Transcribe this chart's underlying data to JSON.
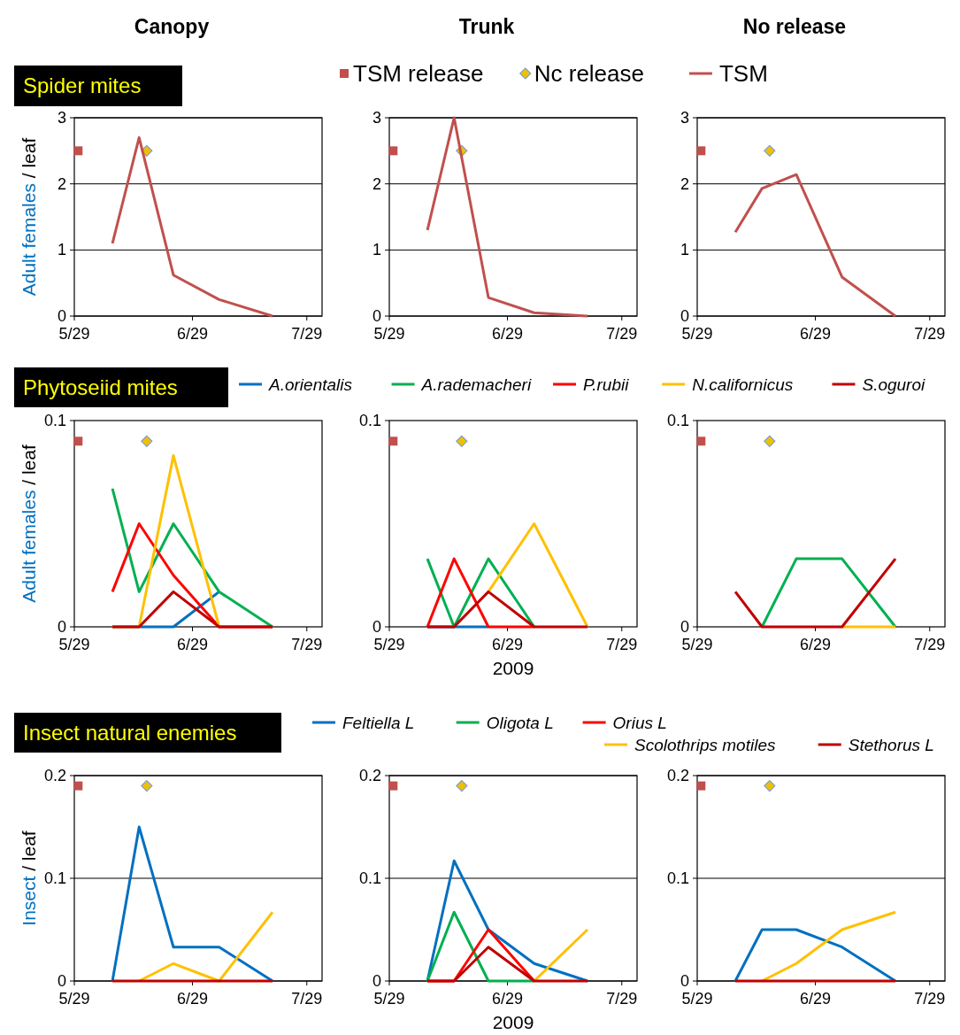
{
  "chart_data": [
    {
      "type": "line",
      "title": "Canopy",
      "ylabel": "Adult females / leaf",
      "annotations": [
        "Spider mites"
      ],
      "legend": "top",
      "grid": "y",
      "xlim": [
        "2009-05-29",
        "2009-08-02"
      ],
      "xticks": [
        {
          "value": "2009-05-29",
          "label": "5/29"
        },
        {
          "value": "2009-06-29",
          "label": "6/29"
        },
        {
          "value": "2009-07-29",
          "label": "7/29"
        }
      ],
      "ylim": [
        0,
        3
      ],
      "yticks": [
        0,
        1,
        2,
        3
      ],
      "x": [
        "2009-06-08",
        "2009-06-15",
        "2009-06-24",
        "2009-07-06",
        "2009-07-20"
      ],
      "series": [
        {
          "name": "TSM release",
          "type": "scatter",
          "marker": "square",
          "color": "#c0504d",
          "x": [
            "2009-05-30"
          ],
          "values": [
            2.5
          ]
        },
        {
          "name": "Nc release",
          "type": "scatter",
          "marker": "diamond",
          "color": "#f0c000",
          "x": [
            "2009-06-17"
          ],
          "values": [
            2.5
          ]
        },
        {
          "name": "TSM",
          "color": "#c0504d",
          "values": [
            1.1,
            2.7,
            0.62,
            0.25,
            0
          ]
        }
      ]
    },
    {
      "type": "line",
      "title": "Trunk",
      "grid": "y",
      "xlim": [
        "2009-05-29",
        "2009-08-02"
      ],
      "xticks": [
        {
          "value": "2009-05-29",
          "label": "5/29"
        },
        {
          "value": "2009-06-29",
          "label": "6/29"
        },
        {
          "value": "2009-07-29",
          "label": "7/29"
        }
      ],
      "ylim": [
        0,
        3
      ],
      "yticks": [
        0,
        1,
        2,
        3
      ],
      "x": [
        "2009-06-08",
        "2009-06-15",
        "2009-06-24",
        "2009-07-06",
        "2009-07-20"
      ],
      "series": [
        {
          "type": "scatter",
          "marker": "square",
          "color": "#c0504d",
          "x": [
            "2009-05-30"
          ],
          "values": [
            2.5
          ]
        },
        {
          "type": "scatter",
          "marker": "diamond",
          "color": "#f0c000",
          "x": [
            "2009-06-17"
          ],
          "values": [
            2.5
          ]
        },
        {
          "color": "#c0504d",
          "values": [
            1.3,
            3.0,
            0.28,
            0.05,
            0
          ]
        }
      ]
    },
    {
      "type": "line",
      "title": "No release",
      "grid": "y",
      "xlim": [
        "2009-05-29",
        "2009-08-02"
      ],
      "xticks": [
        {
          "value": "2009-05-29",
          "label": "5/29"
        },
        {
          "value": "2009-06-29",
          "label": "6/29"
        },
        {
          "value": "2009-07-29",
          "label": "7/29"
        }
      ],
      "ylim": [
        0,
        3
      ],
      "yticks": [
        0,
        1,
        2,
        3
      ],
      "x": [
        "2009-06-08",
        "2009-06-15",
        "2009-06-24",
        "2009-07-06",
        "2009-07-20"
      ],
      "series": [
        {
          "type": "scatter",
          "marker": "square",
          "color": "#c0504d",
          "x": [
            "2009-05-30"
          ],
          "values": [
            2.5
          ]
        },
        {
          "type": "scatter",
          "marker": "diamond",
          "color": "#f0c000",
          "x": [
            "2009-06-17"
          ],
          "values": [
            2.5
          ]
        },
        {
          "color": "#c0504d",
          "values": [
            1.27,
            1.93,
            2.14,
            0.59,
            0
          ]
        }
      ]
    },
    {
      "type": "line",
      "ylabel": "Adult females / leaf",
      "annotations": [
        "Phytoseiid mites"
      ],
      "legend": "top",
      "xlim": [
        "2009-05-29",
        "2009-08-02"
      ],
      "xticks": [
        {
          "value": "2009-05-29",
          "label": "5/29"
        },
        {
          "value": "2009-06-29",
          "label": "6/29"
        },
        {
          "value": "2009-07-29",
          "label": "7/29"
        }
      ],
      "ylim": [
        0,
        0.1
      ],
      "yticks": [
        0,
        0.1
      ],
      "x": [
        "2009-06-08",
        "2009-06-15",
        "2009-06-24",
        "2009-07-06",
        "2009-07-20"
      ],
      "series": [
        {
          "type": "scatter",
          "marker": "square",
          "color": "#c0504d",
          "x": [
            "2009-05-30"
          ],
          "values": [
            0.09
          ]
        },
        {
          "type": "scatter",
          "marker": "diamond",
          "color": "#f0c000",
          "x": [
            "2009-06-17"
          ],
          "values": [
            0.09
          ]
        },
        {
          "name": "A.orientalis",
          "color": "#0070c0",
          "values": [
            0,
            0,
            0,
            0.017,
            null
          ]
        },
        {
          "name": "A.rademacheri",
          "color": "#00b050",
          "values": [
            0.067,
            0.017,
            0.05,
            0.017,
            0
          ]
        },
        {
          "name": "P.rubii",
          "color": "#ff0000",
          "values": [
            0.017,
            0.05,
            0.025,
            0,
            0
          ]
        },
        {
          "name": "N.californicus",
          "color": "#ffc000",
          "values": [
            0,
            0,
            0.083,
            0,
            null
          ]
        },
        {
          "name": "S.oguroi",
          "color": "#c00000",
          "values": [
            0,
            0,
            0.017,
            0,
            0
          ]
        }
      ]
    },
    {
      "type": "line",
      "xlabel": "2009",
      "xlim": [
        "2009-05-29",
        "2009-08-02"
      ],
      "xticks": [
        {
          "value": "2009-05-29",
          "label": "5/29"
        },
        {
          "value": "2009-06-29",
          "label": "6/29"
        },
        {
          "value": "2009-07-29",
          "label": "7/29"
        }
      ],
      "ylim": [
        0,
        0.1
      ],
      "yticks": [
        0,
        0.1
      ],
      "x": [
        "2009-06-08",
        "2009-06-15",
        "2009-06-24",
        "2009-07-06",
        "2009-07-20"
      ],
      "series": [
        {
          "type": "scatter",
          "marker": "square",
          "color": "#c0504d",
          "x": [
            "2009-05-30"
          ],
          "values": [
            0.09
          ]
        },
        {
          "type": "scatter",
          "marker": "diamond",
          "color": "#f0c000",
          "x": [
            "2009-06-17"
          ],
          "values": [
            0.09
          ]
        },
        {
          "color": "#0070c0",
          "values": [
            0,
            0,
            0,
            null,
            null
          ]
        },
        {
          "color": "#00b050",
          "values": [
            0.033,
            0,
            0.033,
            0,
            null
          ]
        },
        {
          "color": "#ff0000",
          "values": [
            0,
            0.033,
            0,
            0,
            null
          ]
        },
        {
          "color": "#ffc000",
          "values": [
            null,
            null,
            0.017,
            0.05,
            0
          ]
        },
        {
          "color": "#c00000",
          "values": [
            0,
            0,
            0.017,
            0,
            0
          ]
        }
      ]
    },
    {
      "type": "line",
      "xlim": [
        "2009-05-29",
        "2009-08-02"
      ],
      "xticks": [
        {
          "value": "2009-05-29",
          "label": "5/29"
        },
        {
          "value": "2009-06-29",
          "label": "6/29"
        },
        {
          "value": "2009-07-29",
          "label": "7/29"
        }
      ],
      "ylim": [
        0,
        0.1
      ],
      "yticks": [
        0,
        0.1
      ],
      "x": [
        "2009-06-08",
        "2009-06-15",
        "2009-06-24",
        "2009-07-06",
        "2009-07-20"
      ],
      "series": [
        {
          "type": "scatter",
          "marker": "square",
          "color": "#c0504d",
          "x": [
            "2009-05-30"
          ],
          "values": [
            0.09
          ]
        },
        {
          "type": "scatter",
          "marker": "diamond",
          "color": "#f0c000",
          "x": [
            "2009-06-17"
          ],
          "values": [
            0.09
          ]
        },
        {
          "color": "#00b050",
          "values": [
            null,
            0,
            0.033,
            0.033,
            0
          ]
        },
        {
          "color": "#ffc000",
          "values": [
            null,
            null,
            null,
            0,
            0
          ]
        },
        {
          "color": "#c00000",
          "values": [
            0.017,
            0,
            0,
            0,
            0.033
          ]
        }
      ]
    },
    {
      "type": "line",
      "ylabel": "Insect / leaf",
      "annotations": [
        "Insect natural enemies"
      ],
      "legend": "top",
      "grid": "y",
      "xlim": [
        "2009-05-29",
        "2009-08-02"
      ],
      "xticks": [
        {
          "value": "2009-05-29",
          "label": "5/29"
        },
        {
          "value": "2009-06-29",
          "label": "6/29"
        },
        {
          "value": "2009-07-29",
          "label": "7/29"
        }
      ],
      "ylim": [
        0,
        0.2
      ],
      "yticks": [
        0,
        0.1,
        0.2
      ],
      "x": [
        "2009-06-08",
        "2009-06-15",
        "2009-06-24",
        "2009-07-06",
        "2009-07-20"
      ],
      "series": [
        {
          "type": "scatter",
          "marker": "square",
          "color": "#c0504d",
          "x": [
            "2009-05-30"
          ],
          "values": [
            0.19
          ]
        },
        {
          "type": "scatter",
          "marker": "diamond",
          "color": "#f0c000",
          "x": [
            "2009-06-17"
          ],
          "values": [
            0.19
          ]
        },
        {
          "name": "Feltiella L",
          "color": "#0070c0",
          "values": [
            0,
            0.15,
            0.033,
            0.033,
            0
          ]
        },
        {
          "name": "Oligota L",
          "color": "#00b050",
          "values": [
            null,
            null,
            null,
            null,
            null
          ]
        },
        {
          "name": "Orius L",
          "color": "#ff0000",
          "values": [
            null,
            null,
            null,
            null,
            null
          ]
        },
        {
          "name": "Scolothrips motiles",
          "color": "#ffc000",
          "values": [
            null,
            0,
            0.017,
            0,
            0.067
          ]
        },
        {
          "name": "Stethorus L",
          "color": "#c00000",
          "values": [
            0,
            0,
            0,
            0,
            0
          ]
        }
      ]
    },
    {
      "type": "line",
      "xlabel": "2009",
      "grid": "y",
      "xlim": [
        "2009-05-29",
        "2009-08-02"
      ],
      "xticks": [
        {
          "value": "2009-05-29",
          "label": "5/29"
        },
        {
          "value": "2009-06-29",
          "label": "6/29"
        },
        {
          "value": "2009-07-29",
          "label": "7/29"
        }
      ],
      "ylim": [
        0,
        0.2
      ],
      "yticks": [
        0,
        0.1,
        0.2
      ],
      "x": [
        "2009-06-08",
        "2009-06-15",
        "2009-06-24",
        "2009-07-06",
        "2009-07-20"
      ],
      "series": [
        {
          "type": "scatter",
          "marker": "square",
          "color": "#c0504d",
          "x": [
            "2009-05-30"
          ],
          "values": [
            0.19
          ]
        },
        {
          "type": "scatter",
          "marker": "diamond",
          "color": "#f0c000",
          "x": [
            "2009-06-17"
          ],
          "values": [
            0.19
          ]
        },
        {
          "color": "#0070c0",
          "values": [
            0,
            0.117,
            0.05,
            0.017,
            0
          ]
        },
        {
          "color": "#00b050",
          "values": [
            0,
            0.067,
            0,
            0,
            null
          ]
        },
        {
          "color": "#ffc000",
          "values": [
            null,
            null,
            null,
            0,
            0.05
          ]
        },
        {
          "color": "#ff0000",
          "values": [
            0,
            0,
            0.05,
            0,
            null
          ]
        },
        {
          "color": "#c00000",
          "values": [
            0,
            0,
            0.033,
            0,
            0
          ]
        }
      ]
    },
    {
      "type": "line",
      "grid": "y",
      "xlim": [
        "2009-05-29",
        "2009-08-02"
      ],
      "xticks": [
        {
          "value": "2009-05-29",
          "label": "5/29"
        },
        {
          "value": "2009-06-29",
          "label": "6/29"
        },
        {
          "value": "2009-07-29",
          "label": "7/29"
        }
      ],
      "ylim": [
        0,
        0.2
      ],
      "yticks": [
        0,
        0.1,
        0.2
      ],
      "x": [
        "2009-06-08",
        "2009-06-15",
        "2009-06-24",
        "2009-07-06",
        "2009-07-20"
      ],
      "series": [
        {
          "type": "scatter",
          "marker": "square",
          "color": "#c0504d",
          "x": [
            "2009-05-30"
          ],
          "values": [
            0.19
          ]
        },
        {
          "type": "scatter",
          "marker": "diamond",
          "color": "#f0c000",
          "x": [
            "2009-06-17"
          ],
          "values": [
            0.19
          ]
        },
        {
          "color": "#0070c0",
          "values": [
            0,
            0.05,
            0.05,
            0.033,
            0
          ]
        },
        {
          "color": "#ffc000",
          "values": [
            null,
            0,
            0.017,
            0.05,
            0.067
          ]
        },
        {
          "color": "#c00000",
          "values": [
            0,
            0,
            0,
            0,
            0
          ]
        }
      ]
    }
  ]
}
